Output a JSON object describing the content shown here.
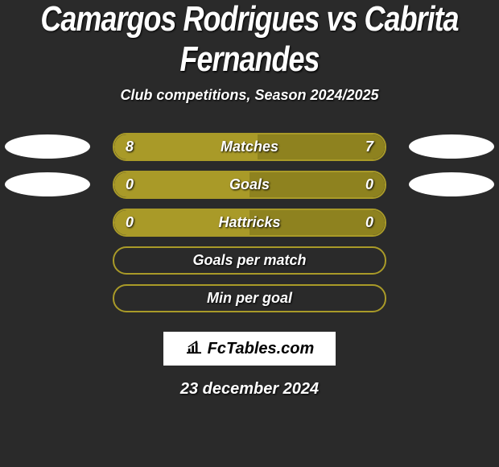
{
  "title": "Camargos Rodrigues vs Cabrita Fernandes",
  "subtitle": "Club competitions, Season 2024/2025",
  "date": "23 december 2024",
  "logo_text": "FcTables.com",
  "colors": {
    "bg": "#2a2a2a",
    "olive": "#a99a28",
    "olive_dark": "#8e821f",
    "white": "#ffffff"
  },
  "rows": [
    {
      "label": "Matches",
      "left_val": "8",
      "right_val": "7",
      "left_fill_pct": 53,
      "right_fill_pct": 47,
      "left_pill": true,
      "right_pill": true
    },
    {
      "label": "Goals",
      "left_val": "0",
      "right_val": "0",
      "left_fill_pct": 50,
      "right_fill_pct": 50,
      "left_pill": true,
      "right_pill": true
    },
    {
      "label": "Hattricks",
      "left_val": "0",
      "right_val": "0",
      "left_fill_pct": 50,
      "right_fill_pct": 50,
      "left_pill": false,
      "right_pill": false
    },
    {
      "label": "Goals per match",
      "left_val": "",
      "right_val": "",
      "left_fill_pct": 0,
      "right_fill_pct": 0,
      "left_pill": false,
      "right_pill": false
    },
    {
      "label": "Min per goal",
      "left_val": "",
      "right_val": "",
      "left_fill_pct": 0,
      "right_fill_pct": 0,
      "left_pill": false,
      "right_pill": false
    }
  ]
}
